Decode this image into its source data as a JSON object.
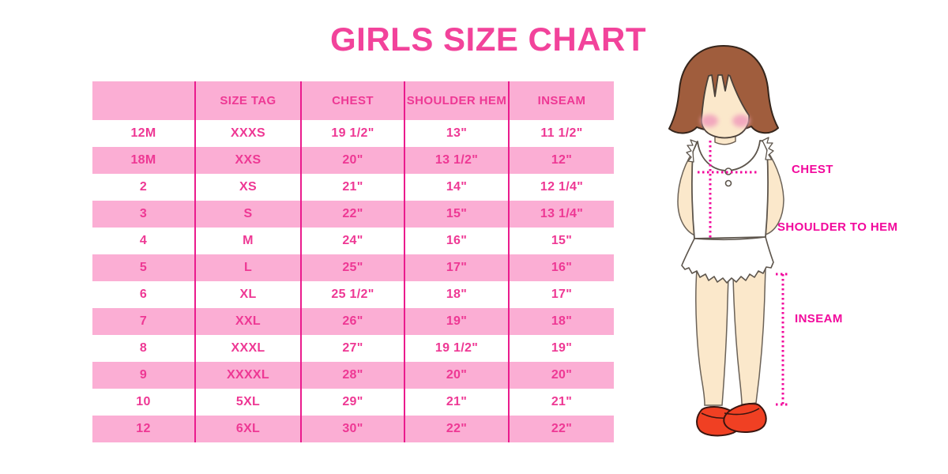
{
  "title": "GIRLS SIZE CHART",
  "chart_data": {
    "type": "table",
    "title": "GIRLS SIZE CHART",
    "columns": [
      "",
      "SIZE TAG",
      "CHEST",
      "SHOULDER HEM",
      "INSEAM"
    ],
    "rows": [
      [
        "12M",
        "XXXS",
        "19 1/2\"",
        "13\"",
        "11 1/2\""
      ],
      [
        "18M",
        "XXS",
        "20\"",
        "13 1/2\"",
        "12\""
      ],
      [
        "2",
        "XS",
        "21\"",
        "14\"",
        "12 1/4\""
      ],
      [
        "3",
        "S",
        "22\"",
        "15\"",
        "13 1/4\""
      ],
      [
        "4",
        "M",
        "24\"",
        "16\"",
        "15\""
      ],
      [
        "5",
        "L",
        "25\"",
        "17\"",
        "16\""
      ],
      [
        "6",
        "XL",
        "25 1/2\"",
        "18\"",
        "17\""
      ],
      [
        "7",
        "XXL",
        "26\"",
        "19\"",
        "18\""
      ],
      [
        "8",
        "XXXL",
        "27\"",
        "19 1/2\"",
        "19\""
      ],
      [
        "9",
        "XXXXL",
        "28\"",
        "20\"",
        "20\""
      ],
      [
        "10",
        "5XL",
        "29\"",
        "21\"",
        "21\""
      ],
      [
        "12",
        "6XL",
        "30\"",
        "22\"",
        "22\""
      ]
    ],
    "row_striping": "first data row white, then alternating pink",
    "legend_position": "none",
    "grid": "vertical magenta dividers between columns only"
  },
  "diagram": {
    "chest_label": "CHEST",
    "shoulder_to_hem_label": "SHOULDER TO HEM",
    "inseam_label": "INSEAM"
  },
  "colors": {
    "row_pink": "#FBAED4",
    "divider_magenta": "#EA1B8D",
    "table_text_pink": "#EE3894",
    "title_pink": "#F2439B",
    "label_magenta": "#F2089C",
    "dotted_line_magenta": "#F2089C",
    "hair_brown": "#A05D3D",
    "skin_tone": "#FBE8CB",
    "blush_pink": "#F2A8BE",
    "shoe_red": "#F04023",
    "clothes_white": "#FFFFFF"
  }
}
